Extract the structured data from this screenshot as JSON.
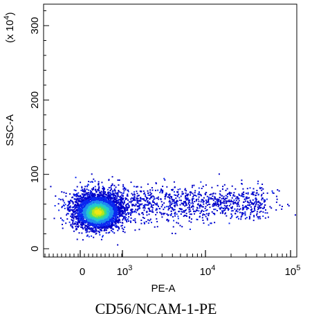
{
  "caption": "CD56/NCAM-1-PE",
  "colors": {
    "density_scale": [
      "#0000c8",
      "#0a28f0",
      "#1e8cf0",
      "#23c8d2",
      "#46dc78",
      "#b4e61e",
      "#f0e614"
    ],
    "axis": "#000000"
  },
  "chart_data": {
    "type": "scatter",
    "style": "density-colored flow cytometry dot plot",
    "xlabel": "PE-A",
    "ylabel": "SSC-A",
    "y_multiplier_label": "(x 10^4)",
    "x_scale": "biexponential (linear near 0, log above 10^3)",
    "x_ticks": [
      {
        "label": "0",
        "value": 0
      },
      {
        "label": "10^3",
        "value": 1000
      },
      {
        "label": "10^4",
        "value": 10000
      },
      {
        "label": "10^5",
        "value": 100000
      }
    ],
    "y_ticks": [
      {
        "label": "0",
        "value": 0
      },
      {
        "label": "100",
        "value": 100
      },
      {
        "label": "200",
        "value": 200
      },
      {
        "label": "300",
        "value": 300
      }
    ],
    "ylim": [
      -12,
      330
    ],
    "grid": false,
    "populations": [
      {
        "name": "dense",
        "x_center": 400,
        "y_center": 50,
        "density": "high"
      },
      {
        "name": "dispersed",
        "x_range": [
          1000,
          30000
        ],
        "y_range": [
          40,
          95
        ],
        "density": "low"
      }
    ]
  }
}
